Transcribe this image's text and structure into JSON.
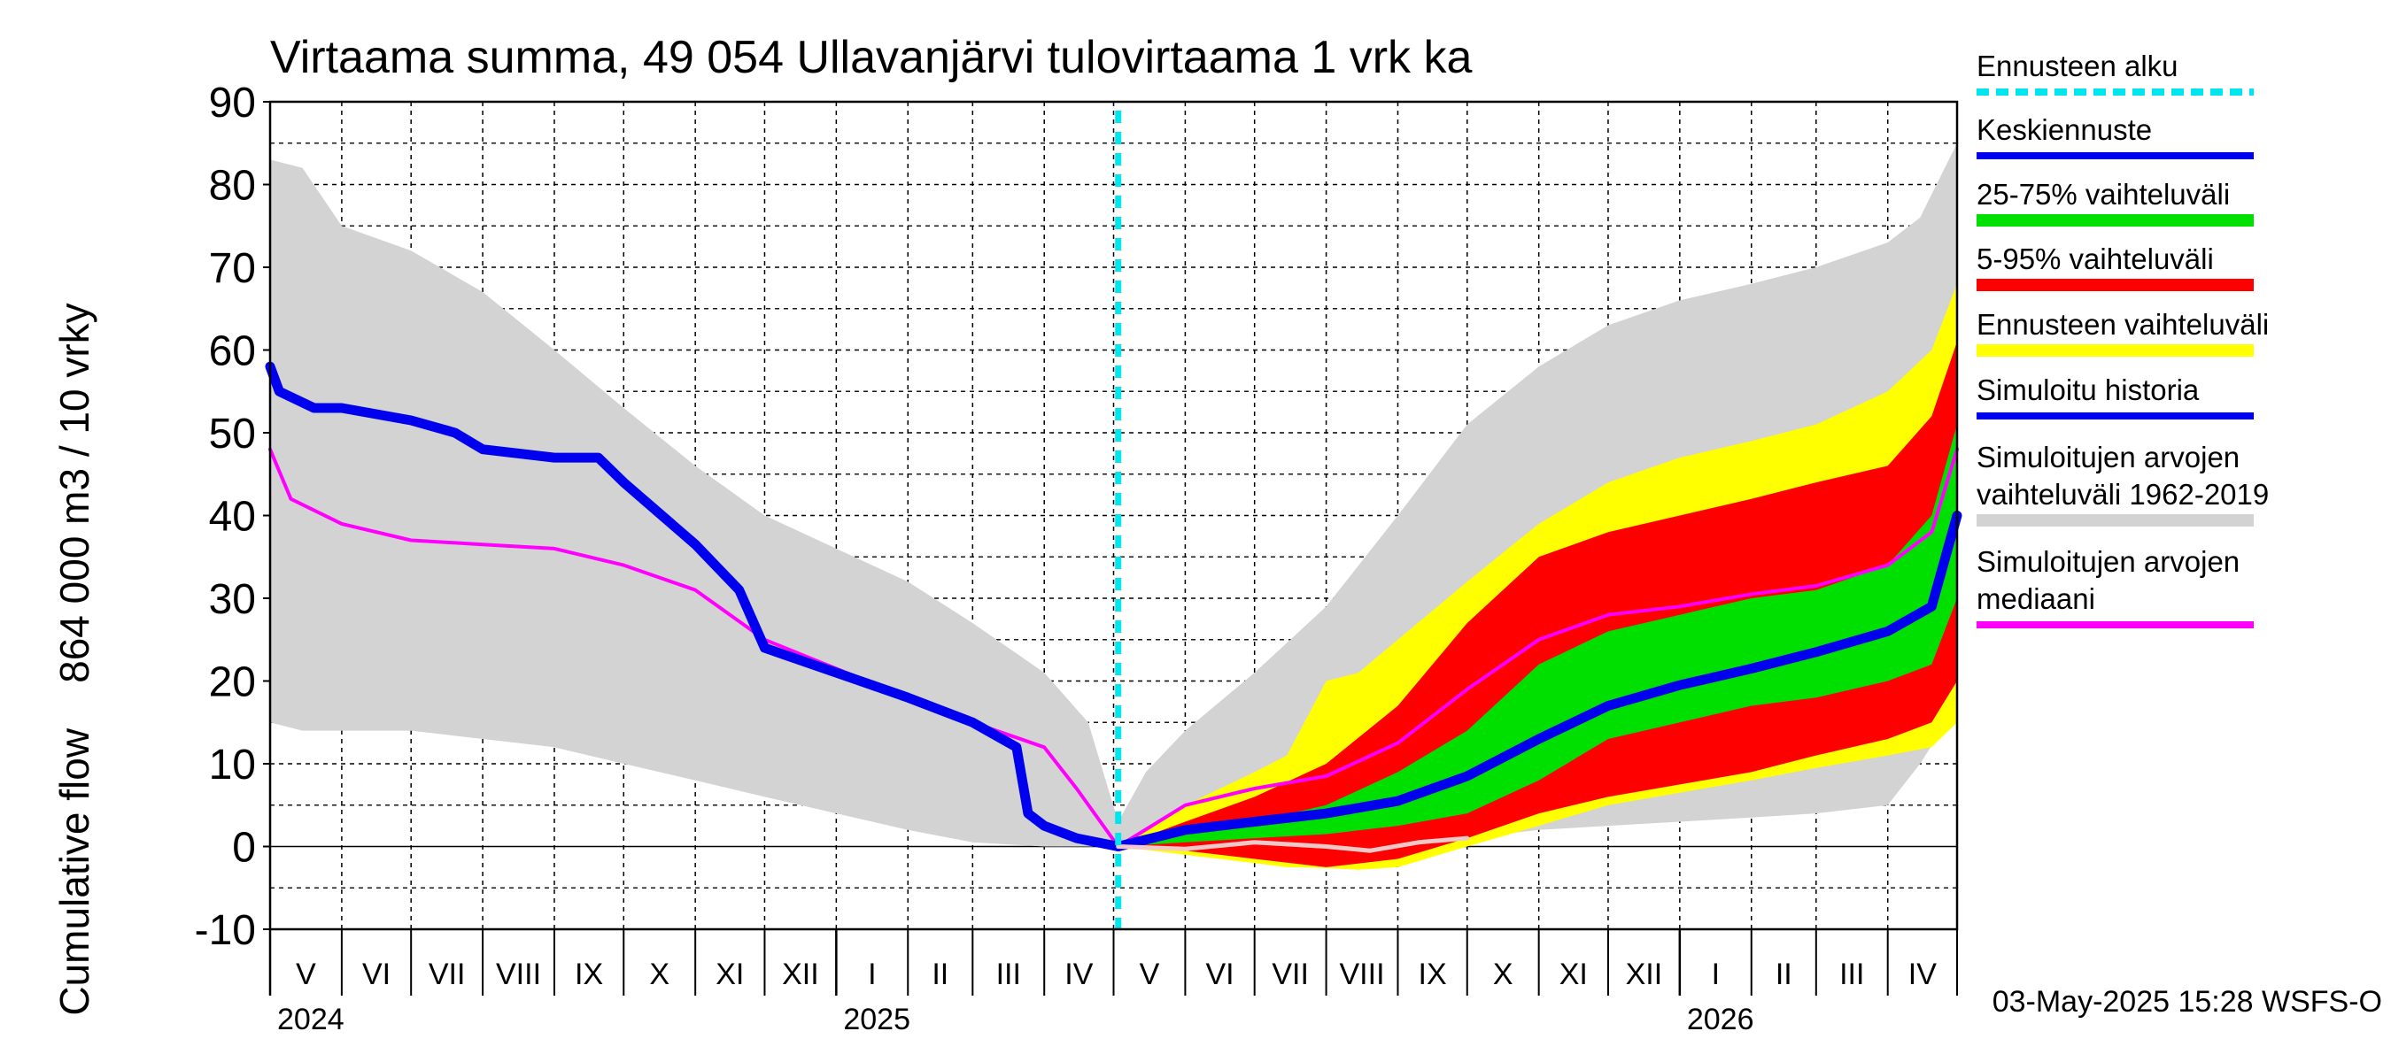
{
  "chart_data": {
    "type": "area",
    "title": "Virtaama summa, 49 054 Ullavanjärvi tulovirtaama 1 vrk ka",
    "ylabel": "Cumulative flow    864 000 m3 / 10 vrky",
    "ylim": [
      -10,
      90
    ],
    "yticks": [
      "-10",
      "0",
      "10",
      "20",
      "30",
      "40",
      "50",
      "60",
      "70",
      "80",
      "90"
    ],
    "x_start": "2024-05-01",
    "x_end": "2026-05-01",
    "forecast_start": "2025-05-03",
    "grid": true,
    "months": [
      "V",
      "VI",
      "VII",
      "VIII",
      "IX",
      "X",
      "XI",
      "XII",
      "I",
      "II",
      "III",
      "IV",
      "V",
      "VI",
      "VII",
      "VIII",
      "IX",
      "X",
      "XI",
      "XII",
      "I",
      "II",
      "III",
      "IV"
    ],
    "years": [
      {
        "label": "2024",
        "date": "2024-05-01"
      },
      {
        "label": "2025",
        "date": "2025-01-01"
      },
      {
        "label": "2026",
        "date": "2026-01-01"
      }
    ],
    "colors": {
      "history_range": "#d3d3d3",
      "forecast_range": "#ffff00",
      "p5_95": "#ff0000",
      "p25_75": "#00e000",
      "mean": "#0000ee",
      "median": "#ff00ff",
      "forecast_start": "#00e5ee",
      "simulated_median_line": "#f0c8c8"
    },
    "legend": [
      {
        "label": "Ennusteen alku",
        "color": "#00e5ee",
        "style": "dashed"
      },
      {
        "label": "Keskiennuste",
        "color": "#0000ee",
        "style": "solid"
      },
      {
        "label": "25-75% vaihteluväli",
        "color": "#00e000",
        "style": "band"
      },
      {
        "label": "5-95% vaihteluväli",
        "color": "#ff0000",
        "style": "band"
      },
      {
        "label": "Ennusteen vaihteluväli",
        "color": "#ffff00",
        "style": "band"
      },
      {
        "label": "Simuloitu historia",
        "color": "#0000ee",
        "style": "solid"
      },
      {
        "label": "Simuloitujen arvojen\nvaihteluväli 1962-2019",
        "color": "#d3d3d3",
        "style": "band"
      },
      {
        "label": "Simuloitujen arvojen\nmediaani",
        "color": "#ff00ff",
        "style": "solid"
      }
    ],
    "series": [
      {
        "name": "Simuloitujen arvojen vaihteluväli 1962-2019",
        "kind": "band",
        "x": [
          "2024-05-01",
          "2024-05-15",
          "2024-06-01",
          "2024-07-01",
          "2024-08-01",
          "2024-09-01",
          "2024-10-01",
          "2024-11-01",
          "2024-12-01",
          "2025-01-01",
          "2025-02-01",
          "2025-03-01",
          "2025-04-01",
          "2025-04-20",
          "2025-05-03",
          "2025-05-15",
          "2025-06-01",
          "2025-07-01",
          "2025-08-01",
          "2025-09-01",
          "2025-10-01",
          "2025-11-01",
          "2025-12-01",
          "2026-01-01",
          "2026-02-01",
          "2026-03-01",
          "2026-04-01",
          "2026-04-15",
          "2026-05-01"
        ],
        "upper": [
          83,
          82,
          75,
          72,
          67,
          60,
          53,
          46,
          40,
          36,
          32,
          27,
          21,
          15,
          3,
          9,
          14,
          21,
          29,
          40,
          51,
          58,
          63,
          66,
          68,
          70,
          73,
          76,
          85
        ],
        "lower": [
          15,
          14,
          14,
          14,
          13,
          12,
          10,
          8,
          6,
          4,
          2,
          0.5,
          0,
          0,
          0,
          0,
          0,
          -0.3,
          -0.5,
          0,
          1,
          2,
          2.5,
          3,
          3.5,
          4,
          5,
          10,
          17
        ]
      },
      {
        "name": "Ennusteen vaihteluväli",
        "kind": "band",
        "x": [
          "2025-05-03",
          "2025-06-01",
          "2025-07-01",
          "2025-07-15",
          "2025-08-01",
          "2025-08-15",
          "2025-09-01",
          "2025-10-01",
          "2025-11-01",
          "2025-12-01",
          "2026-01-01",
          "2026-02-01",
          "2026-03-01",
          "2026-04-01",
          "2026-04-20",
          "2026-05-01"
        ],
        "upper": [
          0,
          5,
          9,
          11,
          20,
          21,
          25,
          32,
          39,
          44,
          47,
          49,
          51,
          55,
          60,
          68
        ],
        "lower": [
          0,
          -1,
          -2,
          -2.5,
          -2.6,
          -2.8,
          -2.5,
          0,
          2.5,
          5,
          6.5,
          8,
          9.5,
          11,
          12,
          15
        ]
      },
      {
        "name": "5-95% vaihteluväli",
        "kind": "band",
        "x": [
          "2025-05-03",
          "2025-06-01",
          "2025-07-01",
          "2025-08-01",
          "2025-09-01",
          "2025-10-01",
          "2025-11-01",
          "2025-12-01",
          "2026-01-01",
          "2026-02-01",
          "2026-03-01",
          "2026-04-01",
          "2026-04-20",
          "2026-05-01"
        ],
        "upper": [
          0,
          3,
          6,
          10,
          17,
          27,
          35,
          38,
          40,
          42,
          44,
          46,
          52,
          61
        ],
        "lower": [
          0,
          -0.5,
          -1.5,
          -2.5,
          -1.5,
          1,
          4,
          6,
          7.5,
          9,
          11,
          13,
          15,
          20
        ]
      },
      {
        "name": "25-75% vaihteluväli",
        "kind": "band",
        "x": [
          "2025-05-03",
          "2025-06-01",
          "2025-07-01",
          "2025-08-01",
          "2025-09-01",
          "2025-10-01",
          "2025-11-01",
          "2025-12-01",
          "2026-01-01",
          "2026-02-01",
          "2026-03-01",
          "2026-04-01",
          "2026-04-20",
          "2026-05-01"
        ],
        "upper": [
          0,
          1.5,
          3,
          5,
          9,
          14,
          22,
          26,
          28,
          30,
          31,
          34,
          40,
          51
        ],
        "lower": [
          0,
          0.5,
          1,
          1.5,
          2.5,
          4,
          8,
          13,
          15,
          17,
          18,
          20,
          22,
          30
        ]
      },
      {
        "name": "Simuloitujen arvojen mediaani",
        "kind": "line",
        "x": [
          "2024-05-01",
          "2024-05-10",
          "2024-06-01",
          "2024-07-01",
          "2024-08-01",
          "2024-09-01",
          "2024-10-01",
          "2024-11-01",
          "2024-12-01",
          "2025-01-01",
          "2025-02-01",
          "2025-03-01",
          "2025-04-01",
          "2025-04-15",
          "2025-05-03",
          "2025-06-01",
          "2025-07-01",
          "2025-08-01",
          "2025-09-01",
          "2025-10-01",
          "2025-11-01",
          "2025-12-01",
          "2026-01-01",
          "2026-02-01",
          "2026-03-01",
          "2026-04-01",
          "2026-04-20",
          "2026-05-01"
        ],
        "values": [
          48,
          42,
          39,
          37,
          36.5,
          36,
          34,
          31,
          25,
          21.5,
          18,
          15,
          12,
          7,
          0,
          5,
          7,
          8.5,
          12.5,
          19,
          25,
          28,
          29,
          30.5,
          31.5,
          34,
          38,
          48
        ]
      },
      {
        "name": "Simuloitu historia",
        "kind": "line",
        "x": [
          "2024-05-01",
          "2024-05-05",
          "2024-05-20",
          "2024-06-01",
          "2024-07-01",
          "2024-07-20",
          "2024-08-01",
          "2024-09-01",
          "2024-09-20",
          "2024-10-01",
          "2024-11-01",
          "2024-11-20",
          "2024-12-01",
          "2025-01-01",
          "2025-02-01",
          "2025-03-01",
          "2025-03-20",
          "2025-03-25",
          "2025-04-01",
          "2025-04-15",
          "2025-05-03"
        ],
        "values": [
          58,
          55,
          53,
          53,
          51.5,
          50,
          48,
          47,
          47,
          44,
          36.5,
          31,
          24,
          21,
          18,
          15,
          12,
          4,
          2.5,
          1,
          0
        ]
      },
      {
        "name": "Keskiennuste",
        "kind": "line",
        "x": [
          "2025-05-03",
          "2025-06-01",
          "2025-07-01",
          "2025-08-01",
          "2025-09-01",
          "2025-10-01",
          "2025-11-01",
          "2025-12-01",
          "2026-01-01",
          "2026-02-01",
          "2026-03-01",
          "2026-04-01",
          "2026-04-20",
          "2026-05-01"
        ],
        "values": [
          0,
          2,
          3,
          4,
          5.5,
          8.5,
          13,
          17,
          19.5,
          21.5,
          23.5,
          26,
          29,
          40
        ]
      },
      {
        "name": "Simuloitujen arvojen mediaani (ennuste)",
        "kind": "thin",
        "x": [
          "2025-05-03",
          "2025-06-01",
          "2025-07-01",
          "2025-08-01",
          "2025-08-20",
          "2025-09-10",
          "2025-10-01"
        ],
        "values": [
          0,
          -0.3,
          0.5,
          0,
          -0.5,
          0.5,
          1
        ]
      }
    ]
  },
  "footer": {
    "timestamp": "03-May-2025 15:28 WSFS-O"
  }
}
